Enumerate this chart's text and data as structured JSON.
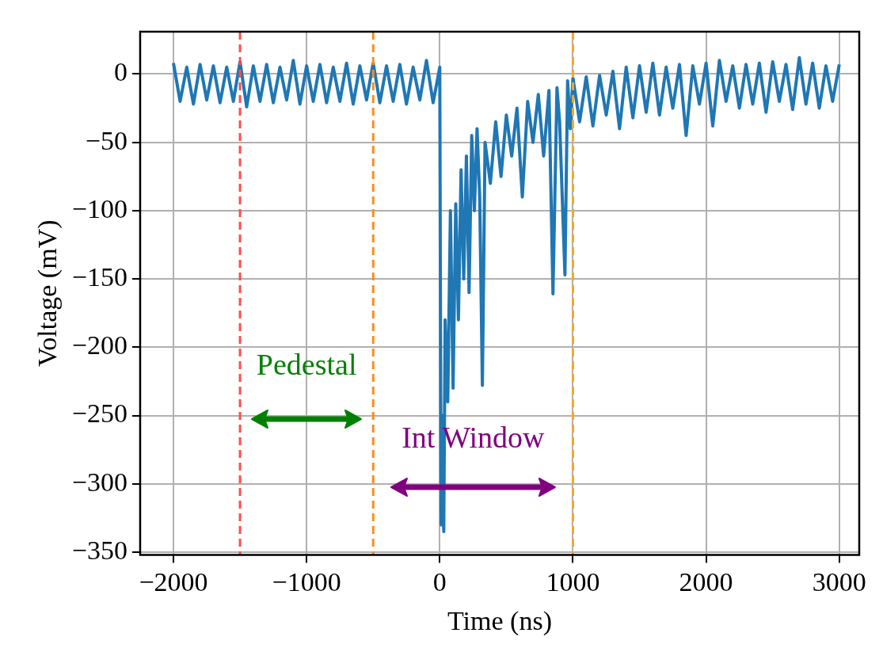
{
  "chart_data": {
    "type": "line",
    "xlabel": "Time (ns)",
    "ylabel": "Voltage (mV)",
    "xlim": [
      -2250,
      3150
    ],
    "ylim": [
      -352,
      31
    ],
    "xticks": [
      -2000,
      -1000,
      0,
      1000,
      2000,
      3000
    ],
    "yticks": [
      -350,
      -300,
      -250,
      -200,
      -150,
      -100,
      -50,
      0
    ],
    "grid": true,
    "marker": "none",
    "line_style": "solid",
    "series": [
      {
        "color": "#1f77b4",
        "x": [
          -2000,
          -1950,
          -1900,
          -1850,
          -1800,
          -1750,
          -1700,
          -1650,
          -1600,
          -1550,
          -1500,
          -1450,
          -1400,
          -1350,
          -1300,
          -1250,
          -1200,
          -1150,
          -1100,
          -1050,
          -1000,
          -950,
          -900,
          -850,
          -800,
          -750,
          -700,
          -650,
          -600,
          -550,
          -500,
          -450,
          -400,
          -350,
          -300,
          -250,
          -200,
          -150,
          -100,
          -50,
          0,
          10,
          20,
          30,
          40,
          60,
          80,
          100,
          120,
          140,
          160,
          180,
          200,
          220,
          240,
          260,
          280,
          300,
          320,
          340,
          380,
          420,
          460,
          500,
          540,
          580,
          620,
          660,
          700,
          740,
          780,
          820,
          850,
          880,
          900,
          940,
          960,
          980,
          1000,
          1050,
          1100,
          1150,
          1200,
          1250,
          1300,
          1350,
          1400,
          1450,
          1500,
          1550,
          1600,
          1650,
          1700,
          1750,
          1800,
          1850,
          1900,
          1950,
          2000,
          2050,
          2100,
          2150,
          2200,
          2250,
          2300,
          2350,
          2400,
          2450,
          2500,
          2550,
          2600,
          2650,
          2700,
          2750,
          2800,
          2850,
          2900,
          2950,
          3000
        ],
        "values": [
          8,
          -20,
          5,
          -22,
          7,
          -19,
          6,
          -21,
          5,
          -20,
          9,
          -24,
          6,
          -20,
          7,
          -21,
          5,
          -19,
          10,
          -22,
          6,
          -20,
          7,
          -21,
          5,
          -20,
          8,
          -22,
          6,
          -19,
          8,
          -21,
          6,
          -20,
          7,
          -22,
          5,
          -19,
          10,
          -21,
          5,
          -330,
          -250,
          -335,
          -180,
          -240,
          -100,
          -230,
          -95,
          -180,
          -70,
          -150,
          -60,
          -160,
          -45,
          -100,
          -40,
          -90,
          -228,
          -50,
          -80,
          -35,
          -75,
          -30,
          -60,
          -25,
          -90,
          -20,
          -50,
          -15,
          -60,
          -12,
          -161,
          -10,
          -35,
          -147,
          -5,
          -40,
          -3,
          -35,
          -2,
          -38,
          -1,
          -30,
          2,
          -40,
          5,
          -32,
          6,
          -28,
          8,
          -30,
          5,
          -25,
          7,
          -45,
          6,
          -22,
          8,
          -38,
          10,
          -20,
          6,
          -25,
          7,
          -22,
          8,
          -28,
          9,
          -20,
          7,
          -26,
          12,
          -22,
          8,
          -25,
          6,
          -20,
          7
        ]
      }
    ],
    "ref_lines": [
      {
        "axis": "x",
        "value": -1500,
        "color": "#ff4d4d",
        "line_style": "dashed"
      },
      {
        "axis": "x",
        "value": -500,
        "color": "#ff8c1a",
        "line_style": "dashed"
      },
      {
        "axis": "x",
        "value": 1000,
        "color": "#f0a830",
        "line_style": "dashed"
      }
    ],
    "annotations": [
      "Pedestal",
      "Int Window"
    ]
  }
}
